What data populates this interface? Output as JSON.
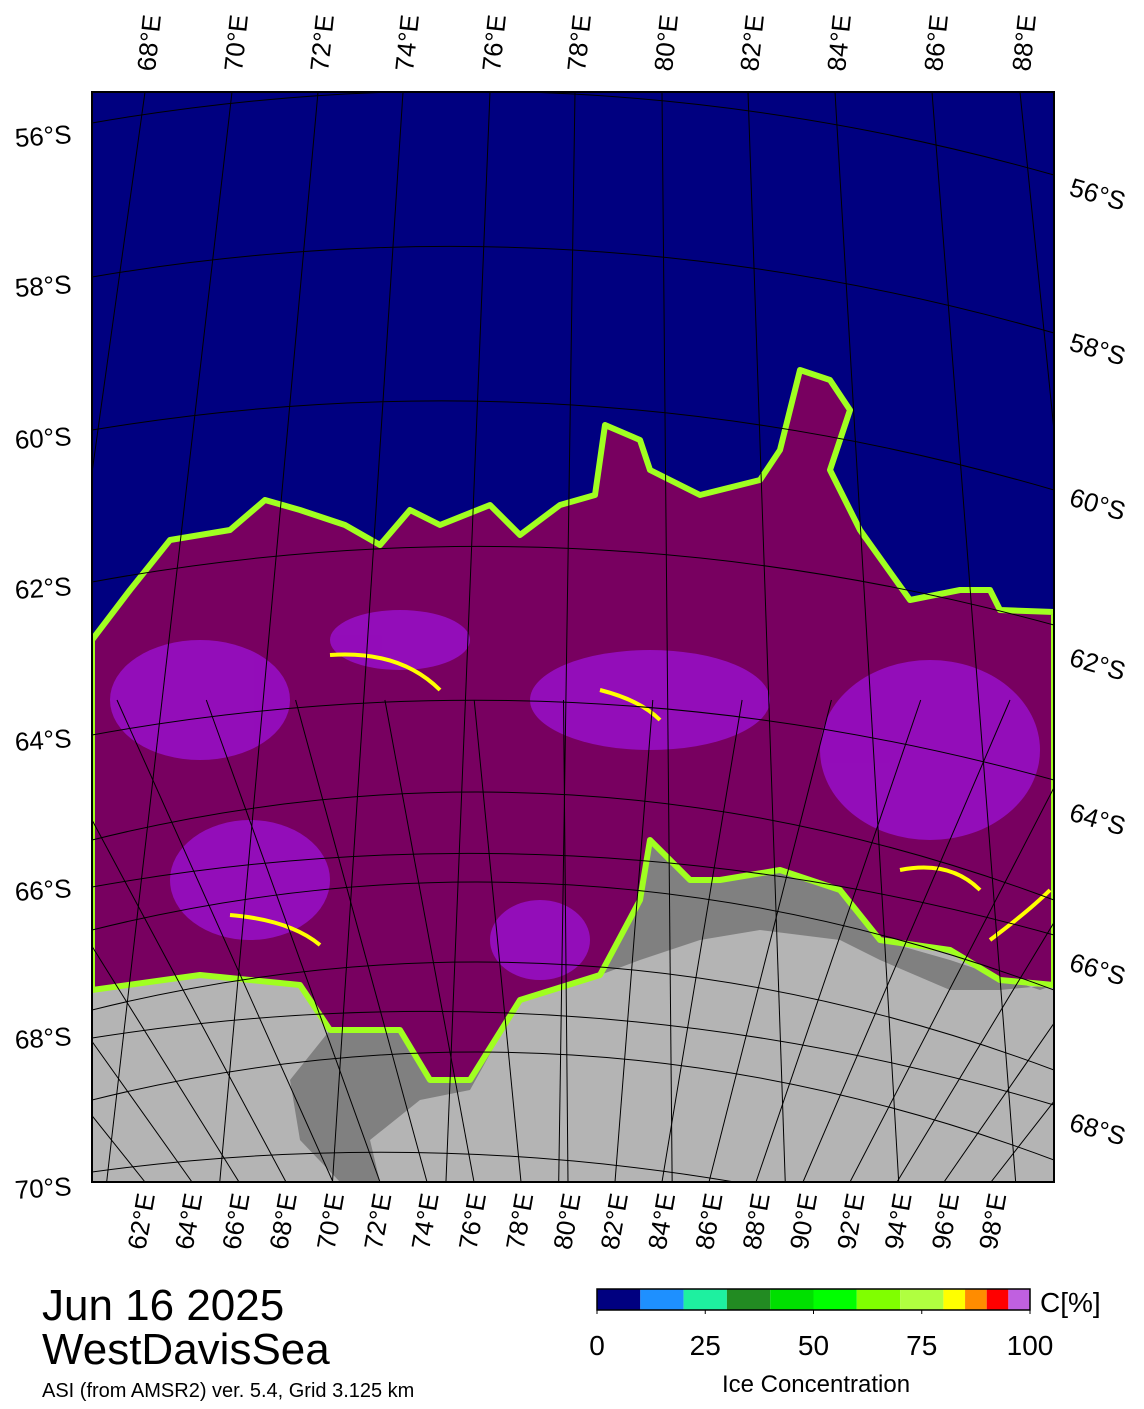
{
  "map": {
    "top_labels": [
      "68°E",
      "70°E",
      "72°E",
      "74°E",
      "76°E",
      "78°E",
      "80°E",
      "82°E",
      "84°E",
      "86°E",
      "88°E"
    ],
    "left_labels": [
      "56°S",
      "58°S",
      "60°S",
      "62°S",
      "64°S",
      "66°S",
      "68°S",
      "70°S"
    ],
    "right_labels": [
      "56°S",
      "58°S",
      "60°S",
      "62°S",
      "64°S",
      "66°S",
      "68°S"
    ],
    "bottom_labels": [
      "62°E",
      "64°E",
      "66°E",
      "68°E",
      "70°E",
      "72°E",
      "74°E",
      "76°E",
      "78°E",
      "80°E",
      "82°E",
      "84°E",
      "86°E",
      "88°E",
      "90°E",
      "92°E",
      "94°E",
      "96°E",
      "98°E"
    ]
  },
  "date": "Jun 16 2025",
  "region": "WestDavisSea",
  "source": "ASI (from AMSR2) ver. 5.4,  Grid 3.125 km",
  "colorbar": {
    "bounds": [
      0,
      10,
      20,
      30,
      40,
      50,
      60,
      70,
      80,
      85,
      90,
      95,
      100
    ],
    "colors": [
      "#000080",
      "#1e90ff",
      "#1ef0a0",
      "#228b22",
      "#00e000",
      "#00ff00",
      "#80ff00",
      "#b0ff40",
      "#ffff00",
      "#ff8c00",
      "#ff0000",
      "#c060e0",
      "#9000d0"
    ],
    "ticks": [
      0,
      25,
      50,
      75,
      100
    ],
    "unit": "C[%]",
    "label": "Ice Concentration"
  }
}
